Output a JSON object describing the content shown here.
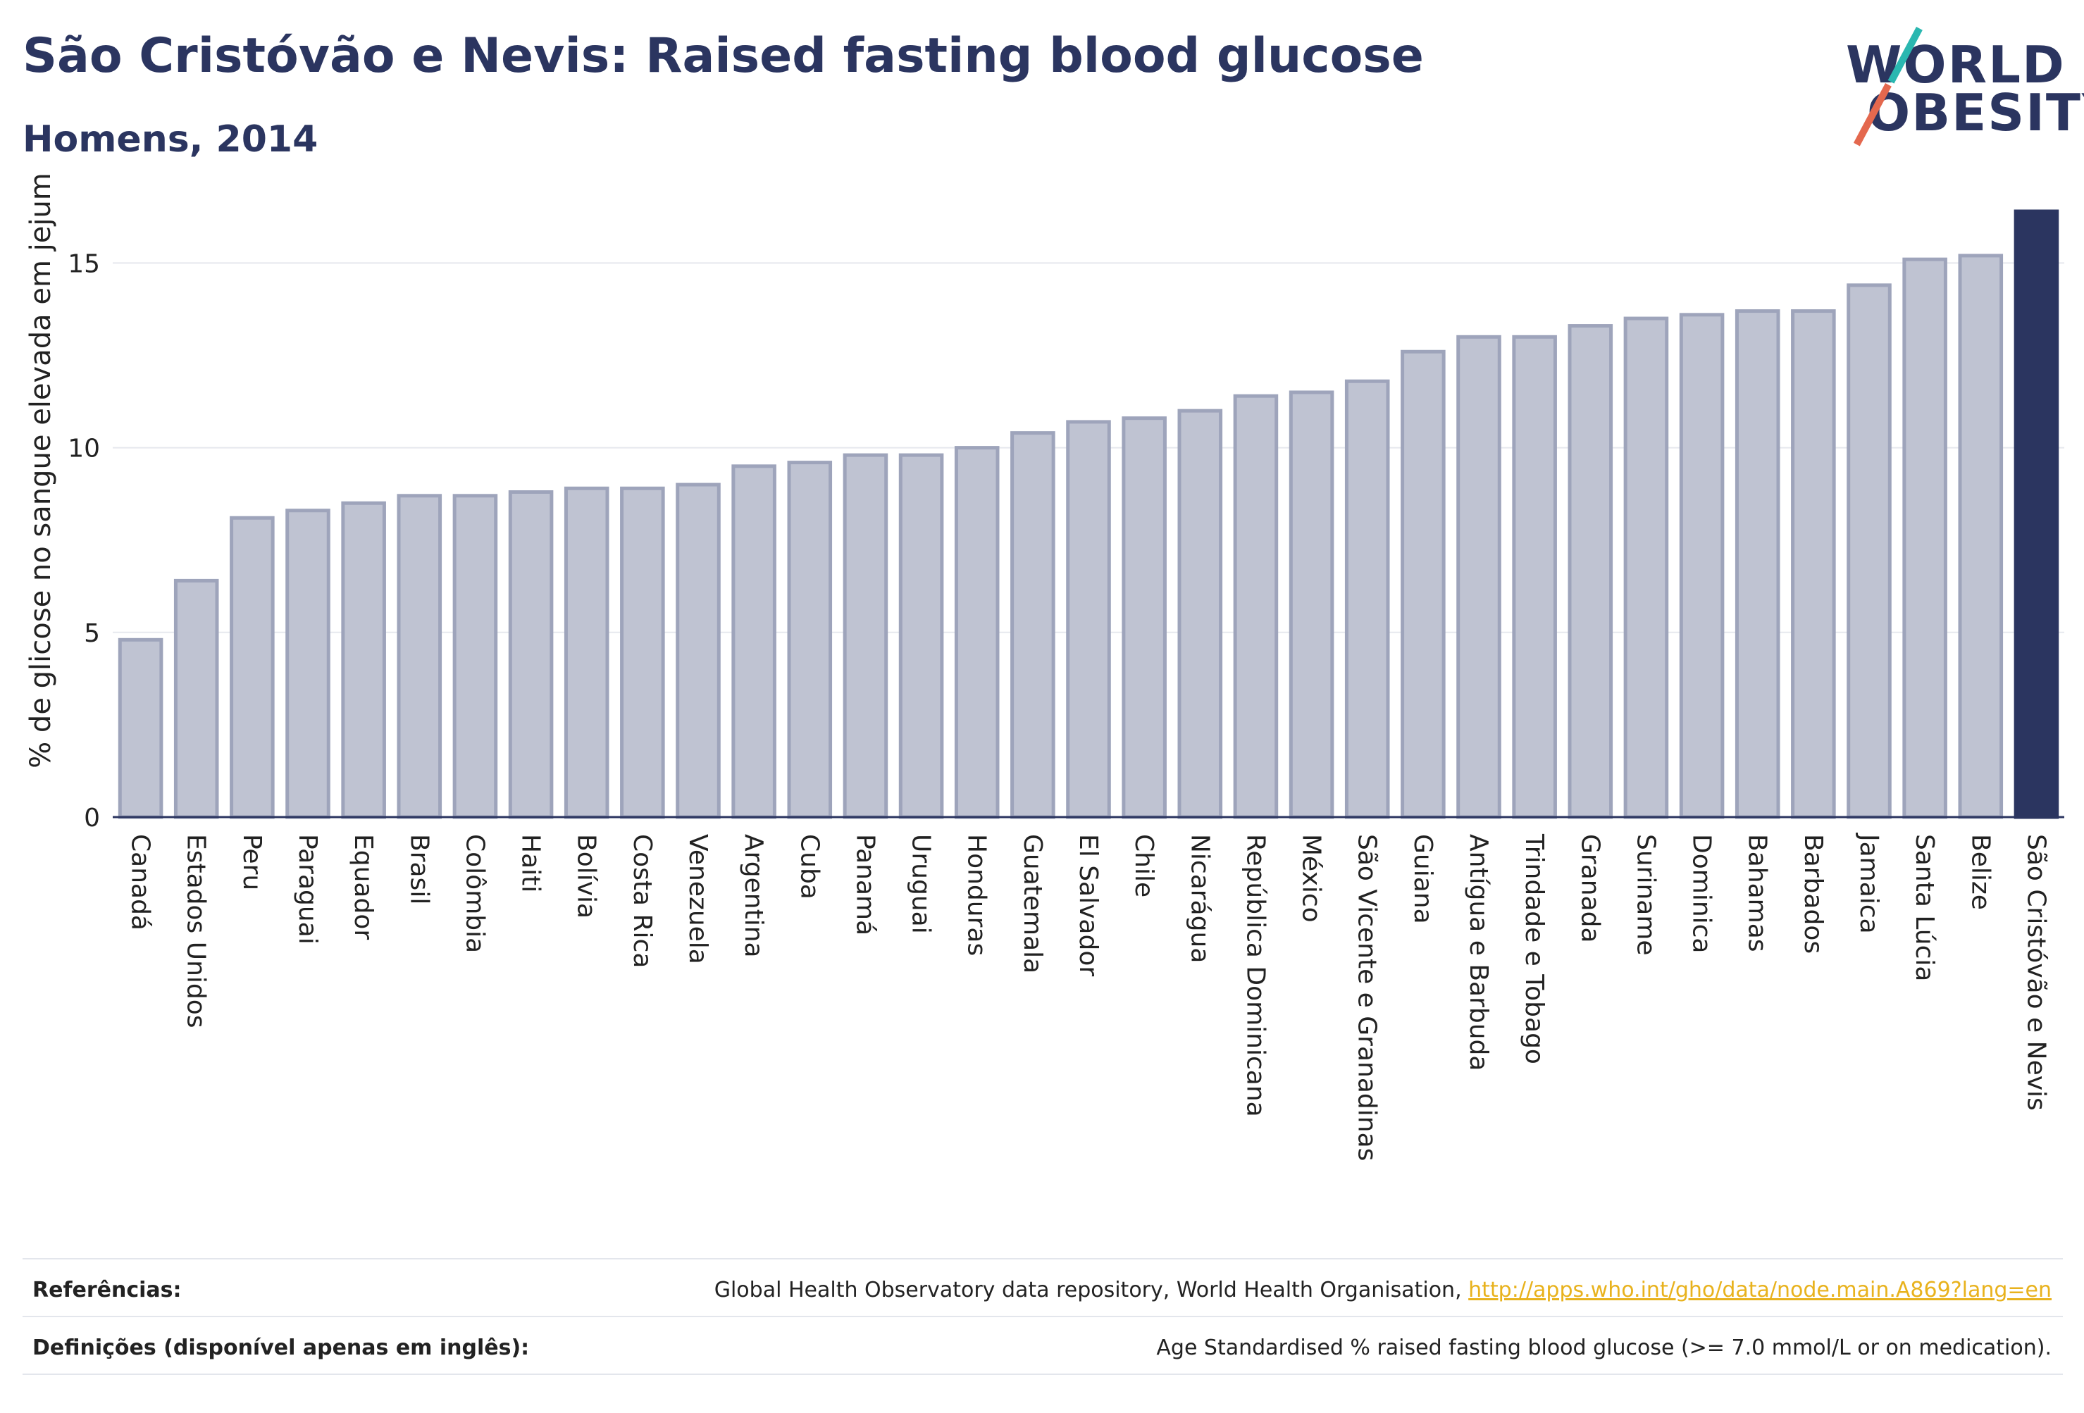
{
  "title": "São Cristóvão e Nevis: Raised fasting blood glucose",
  "subtitle": "Homens, 2014",
  "logo": {
    "line1": "WORLD",
    "line2": "OBESITY"
  },
  "colors": {
    "bar": "#bfc3d2",
    "bar_border": "#9ea4bb",
    "highlight": "#2b3560",
    "grid": "#e6e8ee",
    "axis": "#2b3560"
  },
  "chart_data": {
    "type": "bar",
    "title": "São Cristóvão e Nevis: Raised fasting blood glucose",
    "subtitle": "Homens, 2014",
    "xlabel": "",
    "ylabel": "% de glicose no sangue elevada em jejum",
    "ylim": [
      0,
      16.4
    ],
    "yticks": [
      0,
      5,
      10,
      15
    ],
    "grid": true,
    "highlight": "São Cristóvão e Nevis",
    "categories": [
      "Canadá",
      "Estados Unidos",
      "Peru",
      "Paraguai",
      "Equador",
      "Brasil",
      "Colômbia",
      "Haiti",
      "Bolívia",
      "Costa Rica",
      "Venezuela",
      "Argentina",
      "Cuba",
      "Panamá",
      "Uruguai",
      "Honduras",
      "Guatemala",
      "El Salvador",
      "Chile",
      "Nicarágua",
      "República Dominicana",
      "México",
      "São Vicente e Granadinas",
      "Guiana",
      "Antígua e Barbuda",
      "Trindade e Tobago",
      "Granada",
      "Suriname",
      "Dominica",
      "Bahamas",
      "Barbados",
      "Jamaica",
      "Santa Lúcia",
      "Belize",
      "São Cristóvão e Nevis"
    ],
    "values": [
      4.8,
      6.4,
      8.1,
      8.3,
      8.5,
      8.7,
      8.7,
      8.8,
      8.9,
      8.9,
      9.0,
      9.5,
      9.6,
      9.8,
      9.8,
      10.0,
      10.4,
      10.7,
      10.8,
      11.0,
      11.4,
      11.5,
      11.8,
      12.6,
      13.0,
      13.0,
      13.3,
      13.5,
      13.6,
      13.7,
      13.7,
      14.4,
      15.1,
      15.2,
      16.4
    ]
  },
  "footer": {
    "references_label": "Referências:",
    "references_text": "Global Health Observatory data repository, World Health Organisation, ",
    "references_link": "http://apps.who.int/gho/data/node.main.A869?lang=en",
    "definitions_label": "Definições (disponível apenas em inglês):",
    "definitions_text": "Age Standardised % raised fasting blood glucose (>= 7.0 mmol/L or on medication)."
  }
}
